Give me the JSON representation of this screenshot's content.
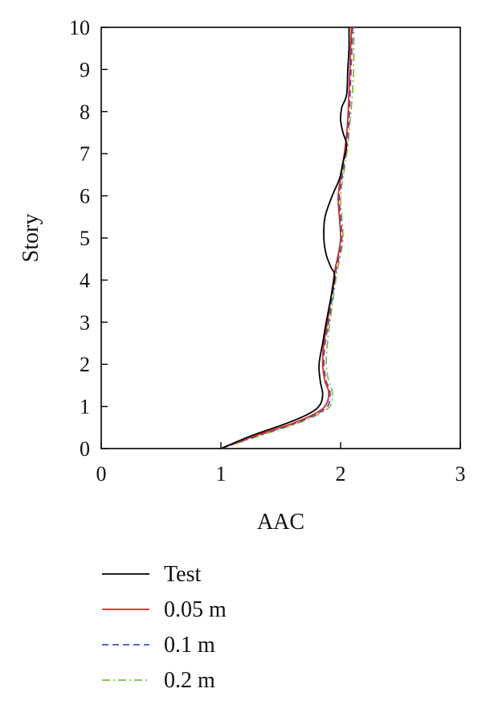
{
  "chart_data": {
    "type": "line",
    "xlabel": "AAC",
    "ylabel": "Story",
    "xlim": [
      0,
      3
    ],
    "ylim": [
      0,
      10
    ],
    "xticks": [
      "0",
      "1",
      "2",
      "3"
    ],
    "yticks": [
      "0",
      "1",
      "2",
      "3",
      "4",
      "5",
      "6",
      "7",
      "8",
      "9",
      "10"
    ],
    "grid": false,
    "legend_position": "bottom",
    "series": [
      {
        "name": "Test",
        "color": "#000000",
        "dash": "solid",
        "points": [
          [
            1.0,
            0
          ],
          [
            1.25,
            0.3
          ],
          [
            1.55,
            0.6
          ],
          [
            1.75,
            0.85
          ],
          [
            1.83,
            1.05
          ],
          [
            1.85,
            1.3
          ],
          [
            1.83,
            1.6
          ],
          [
            1.82,
            2.0
          ],
          [
            1.85,
            2.5
          ],
          [
            1.88,
            3.0
          ],
          [
            1.92,
            3.6
          ],
          [
            1.95,
            4.1
          ],
          [
            1.92,
            4.3
          ],
          [
            1.88,
            4.6
          ],
          [
            1.86,
            5.0
          ],
          [
            1.87,
            5.5
          ],
          [
            1.93,
            6.0
          ],
          [
            1.99,
            6.4
          ],
          [
            2.02,
            6.8
          ],
          [
            2.05,
            7.2
          ],
          [
            2.02,
            7.5
          ],
          [
            2.0,
            7.8
          ],
          [
            2.01,
            8.1
          ],
          [
            2.05,
            8.4
          ],
          [
            2.06,
            9.0
          ],
          [
            2.07,
            9.5
          ],
          [
            2.07,
            10.0
          ]
        ]
      },
      {
        "name": "0.05 m",
        "color": "#e8231d",
        "dash": "solid",
        "points": [
          [
            1.0,
            0
          ],
          [
            1.28,
            0.3
          ],
          [
            1.6,
            0.6
          ],
          [
            1.8,
            0.85
          ],
          [
            1.88,
            1.05
          ],
          [
            1.9,
            1.35
          ],
          [
            1.87,
            1.6
          ],
          [
            1.85,
            2.0
          ],
          [
            1.86,
            2.5
          ],
          [
            1.89,
            3.0
          ],
          [
            1.92,
            3.6
          ],
          [
            1.95,
            4.2
          ],
          [
            1.98,
            4.6
          ],
          [
            2.0,
            5.0
          ],
          [
            1.99,
            5.5
          ],
          [
            1.98,
            6.0
          ],
          [
            2.01,
            6.6
          ],
          [
            2.04,
            7.2
          ],
          [
            2.06,
            7.8
          ],
          [
            2.07,
            8.5
          ],
          [
            2.08,
            9.2
          ],
          [
            2.09,
            10.0
          ]
        ]
      },
      {
        "name": "0.1 m",
        "color": "#3b55c8",
        "dash": "8,5",
        "points": [
          [
            1.0,
            0
          ],
          [
            1.3,
            0.3
          ],
          [
            1.62,
            0.6
          ],
          [
            1.82,
            0.85
          ],
          [
            1.9,
            1.05
          ],
          [
            1.91,
            1.35
          ],
          [
            1.88,
            1.6
          ],
          [
            1.86,
            2.0
          ],
          [
            1.87,
            2.5
          ],
          [
            1.9,
            3.0
          ],
          [
            1.93,
            3.6
          ],
          [
            1.96,
            4.2
          ],
          [
            1.99,
            4.6
          ],
          [
            2.01,
            5.0
          ],
          [
            2.0,
            5.5
          ],
          [
            1.99,
            6.0
          ],
          [
            2.02,
            6.6
          ],
          [
            2.05,
            7.2
          ],
          [
            2.07,
            7.8
          ],
          [
            2.08,
            8.5
          ],
          [
            2.09,
            9.2
          ],
          [
            2.1,
            10.0
          ]
        ]
      },
      {
        "name": "0.2 m",
        "color": "#7bbf3a",
        "dash": "10,4,2,4",
        "points": [
          [
            1.0,
            0
          ],
          [
            1.32,
            0.3
          ],
          [
            1.64,
            0.6
          ],
          [
            1.84,
            0.85
          ],
          [
            1.92,
            1.05
          ],
          [
            1.93,
            1.35
          ],
          [
            1.9,
            1.6
          ],
          [
            1.88,
            2.0
          ],
          [
            1.89,
            2.5
          ],
          [
            1.91,
            3.0
          ],
          [
            1.94,
            3.6
          ],
          [
            1.97,
            4.2
          ],
          [
            2.0,
            4.6
          ],
          [
            2.02,
            5.0
          ],
          [
            2.01,
            5.5
          ],
          [
            2.0,
            6.0
          ],
          [
            2.03,
            6.6
          ],
          [
            2.06,
            7.2
          ],
          [
            2.08,
            7.8
          ],
          [
            2.1,
            8.5
          ],
          [
            2.11,
            9.2
          ],
          [
            2.11,
            10.0
          ]
        ]
      }
    ]
  }
}
